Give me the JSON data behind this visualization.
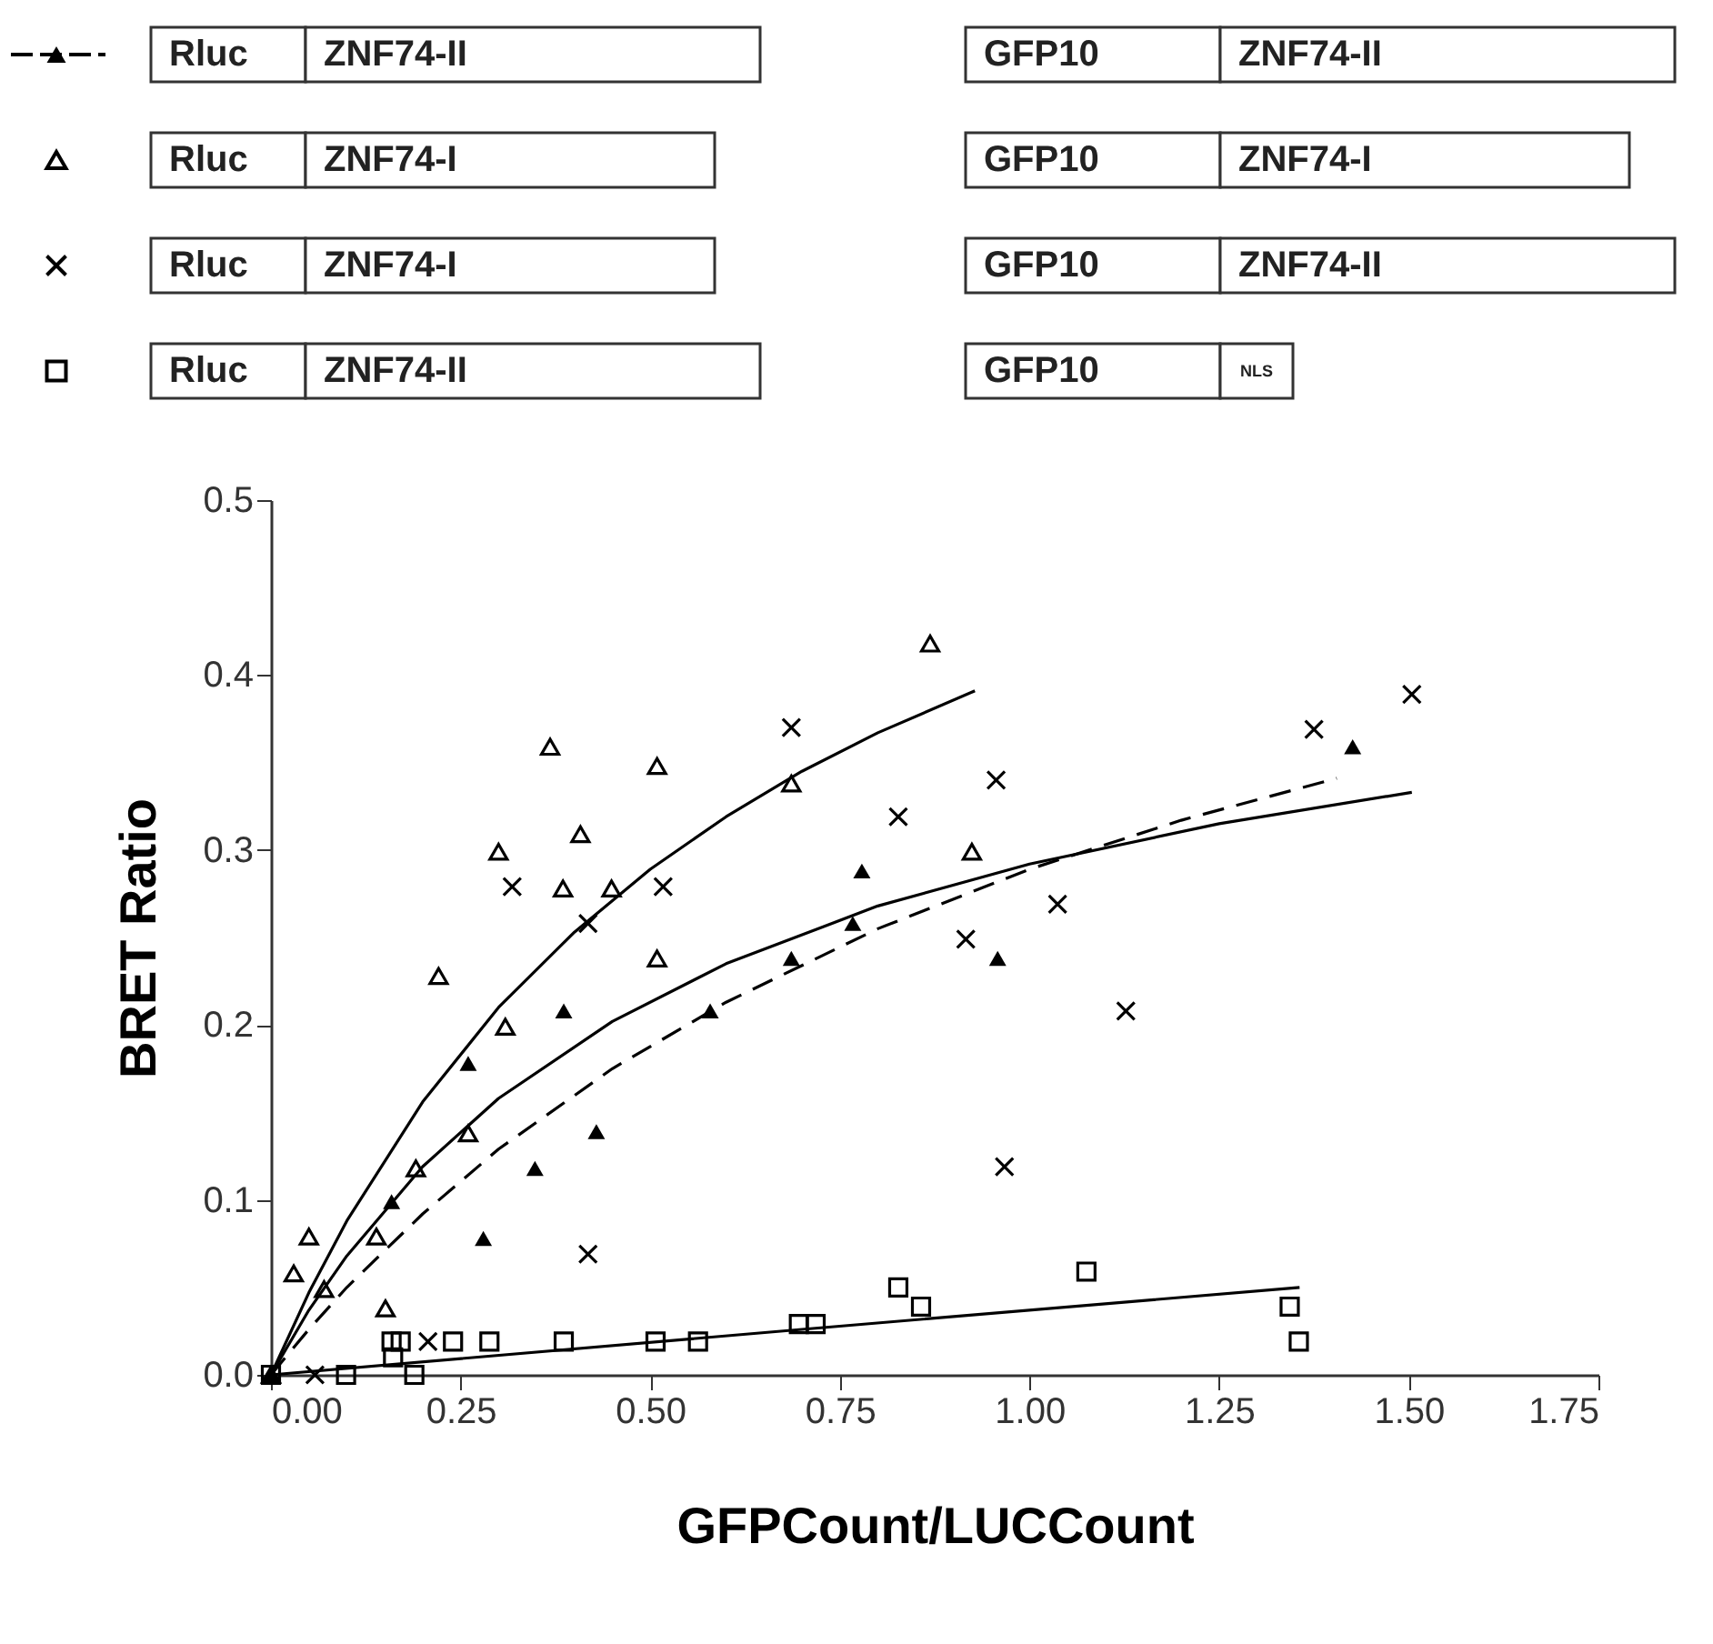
{
  "chart_data": {
    "type": "scatter",
    "xlabel": "GFPCount/LUCCount",
    "ylabel": "BRET Ratio",
    "xlim": [
      0,
      1.75
    ],
    "ylim": [
      0,
      0.5
    ],
    "xticks": [
      {
        "value": 0,
        "label": "0.00"
      },
      0.25,
      {
        "value": 0.5,
        "label": "0.50"
      },
      0.75,
      {
        "value": 1,
        "label": "1.00"
      },
      1.25,
      {
        "value": 1.5,
        "label": "1.50"
      },
      1.75
    ],
    "yticks": [
      {
        "value": 0,
        "label": "0.0"
      },
      0.1,
      0.2,
      0.3,
      0.4,
      0.5
    ],
    "grid": false,
    "annotations": [
      "Rluc",
      "ZNF74-II",
      "GFP10",
      "ZNF74-II",
      "Rluc",
      "ZNF74-I",
      "GFP10",
      "ZNF74-I",
      "Rluc",
      "ZNF74-I",
      "GFP10",
      "ZNF74-II",
      "Rluc",
      "ZNF74-II",
      "GFP10",
      "NLS"
    ],
    "series": [
      {
        "marker": "triangle",
        "color": "#000000",
        "x": [
          0,
          0.159,
          0.26,
          0.28,
          0.348,
          0.386,
          0.429,
          0.579,
          0.686,
          0.767,
          0.779,
          0.958,
          1.426
        ],
        "values": [
          0,
          0.099,
          0.178,
          0.078,
          0.118,
          0.208,
          0.139,
          0.208,
          0.238,
          0.258,
          0.288,
          0.238,
          0.359
        ]
      },
      {
        "marker": "triangle",
        "color": "#000000",
        "x": [
          0,
          0.03,
          0.05,
          0.07,
          0.151,
          0.139,
          0.191,
          0.221,
          0.26,
          0.3,
          0.309,
          0.368,
          0.385,
          0.408,
          0.449,
          0.509,
          0.509,
          0.686,
          0.869,
          0.924
        ],
        "values": [
          0,
          0.058,
          0.079,
          0.049,
          0.038,
          0.079,
          0.118,
          0.228,
          0.138,
          0.299,
          0.199,
          0.359,
          0.278,
          0.309,
          0.278,
          0.348,
          0.238,
          0.338,
          0.418,
          0.299
        ]
      },
      {
        "marker": "cross",
        "color": "#000000",
        "x": [
          0.058,
          0.207,
          0.318,
          0.418,
          0.418,
          0.517,
          0.686,
          0.827,
          0.916,
          0.956,
          1.037,
          1.127,
          0.967,
          1.375,
          1.504
        ],
        "values": [
          0,
          0.019,
          0.279,
          0.258,
          0.069,
          0.279,
          0.37,
          0.319,
          0.249,
          0.34,
          0.269,
          0.208,
          0.119,
          0.369,
          0.389
        ]
      },
      {
        "marker": "square",
        "color": "#000000",
        "x": [
          0,
          0.099,
          0.159,
          0.171,
          0.161,
          0.189,
          0.24,
          0.288,
          0.386,
          0.507,
          0.563,
          0.696,
          0.718,
          0.827,
          0.857,
          1.075,
          1.343,
          1.355
        ],
        "values": [
          0,
          0,
          0.019,
          0.019,
          0.01,
          0,
          0.019,
          0.019,
          0.019,
          0.019,
          0.019,
          0.029,
          0.029,
          0.05,
          0.039,
          0.059,
          0.039,
          0.019
        ]
      },
      {
        "type": "line",
        "line_style": "dashed",
        "marker": "none",
        "color": "#000000",
        "x": [
          0,
          0.05,
          0.1,
          0.2,
          0.3,
          0.45,
          0.6,
          0.8,
          1.0,
          1.2,
          1.405
        ],
        "values": [
          0,
          0.026,
          0.05,
          0.092,
          0.129,
          0.175,
          0.213,
          0.255,
          0.289,
          0.317,
          0.341
        ]
      },
      {
        "type": "line",
        "line_style": "solid",
        "marker": "none",
        "color": "#000000",
        "x": [
          0,
          0.05,
          0.1,
          0.2,
          0.3,
          0.4,
          0.5,
          0.6,
          0.7,
          0.8,
          0.928
        ],
        "values": [
          0,
          0.047,
          0.088,
          0.156,
          0.21,
          0.253,
          0.289,
          0.319,
          0.345,
          0.367,
          0.391
        ]
      },
      {
        "type": "line",
        "line_style": "solid",
        "marker": "none",
        "color": "#000000",
        "x": [
          0,
          0.05,
          0.1,
          0.2,
          0.3,
          0.45,
          0.6,
          0.8,
          1.0,
          1.25,
          1.504
        ],
        "values": [
          0,
          0.037,
          0.068,
          0.119,
          0.158,
          0.202,
          0.235,
          0.268,
          0.292,
          0.315,
          0.333
        ]
      },
      {
        "type": "line",
        "line_style": "solid",
        "marker": "none",
        "color": "#000000",
        "x": [
          0,
          0.7,
          1.356
        ],
        "values": [
          0,
          0.026,
          0.05
        ]
      }
    ]
  }
}
